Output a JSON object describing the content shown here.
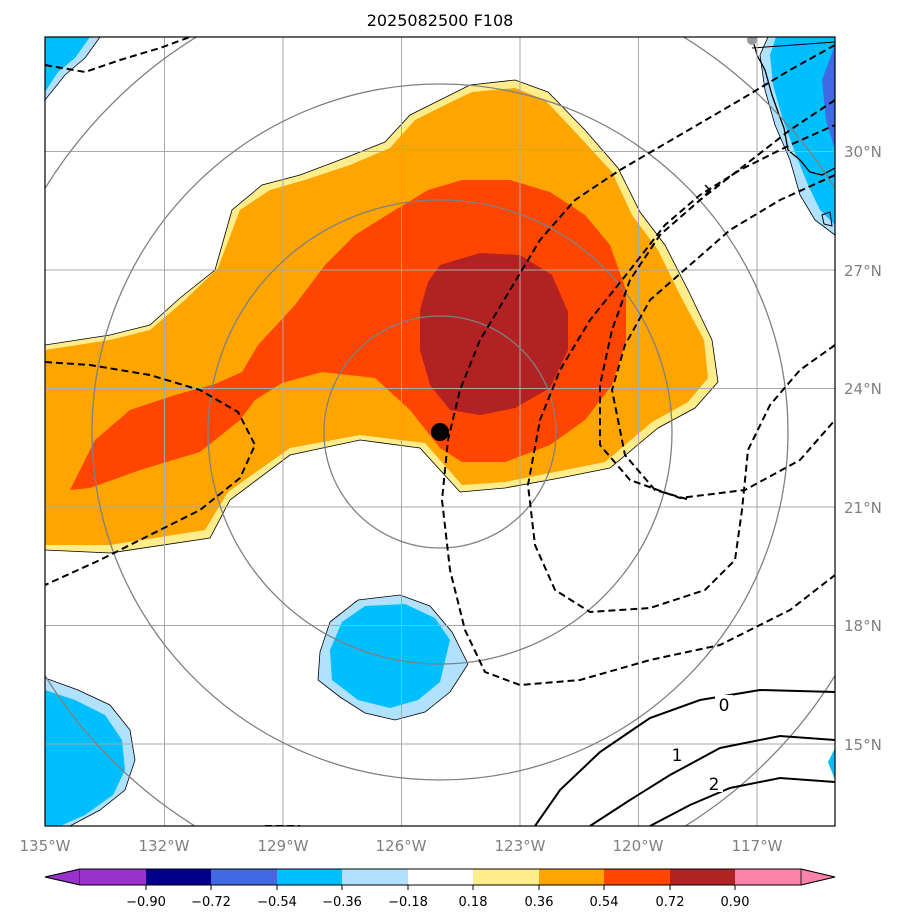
{
  "title": "2025082500 F108",
  "map": {
    "projection": "PlateCarree",
    "lon_range": [
      -135,
      -115
    ],
    "lat_range": [
      13,
      33
    ],
    "lon_ticks": [
      "135°W",
      "132°W",
      "129°W",
      "126°W",
      "123°W",
      "120°W",
      "117°W"
    ],
    "lat_ticks": [
      "30°N",
      "27°N",
      "24°N",
      "21°N",
      "18°N",
      "15°N"
    ],
    "gridlines": true,
    "storm_center": {
      "lon": -125.0,
      "lat": 22.9
    },
    "range_rings": "concentric grey circles around storm center",
    "contour_labels": [
      "0",
      "1",
      "2"
    ],
    "colors": {
      "brown": "#b22222",
      "orangered": "#ff4500",
      "orange": "#ffa500",
      "lightyellow": "#ffec8b",
      "deepskyblue": "#00bfff",
      "lightblue": "#b0e2ff",
      "royalblue": "#4169e1",
      "navy": "#00008b",
      "purple": "#9932cc",
      "pink": "#ff82ab",
      "grid": "#a9a9a9",
      "ring": "#808080"
    }
  },
  "colorbar": {
    "levels": [
      "−0.90",
      "−0.72",
      "−0.54",
      "−0.36",
      "−0.18",
      "0.18",
      "0.36",
      "0.54",
      "0.72",
      "0.90"
    ],
    "colors": [
      "#9932cc",
      "#00008b",
      "#4169e1",
      "#00bfff",
      "#b0e2ff",
      "#ffffff",
      "#ffec8b",
      "#ffa500",
      "#ff4500",
      "#b22222",
      "#ff82ab"
    ],
    "extend": "both"
  }
}
